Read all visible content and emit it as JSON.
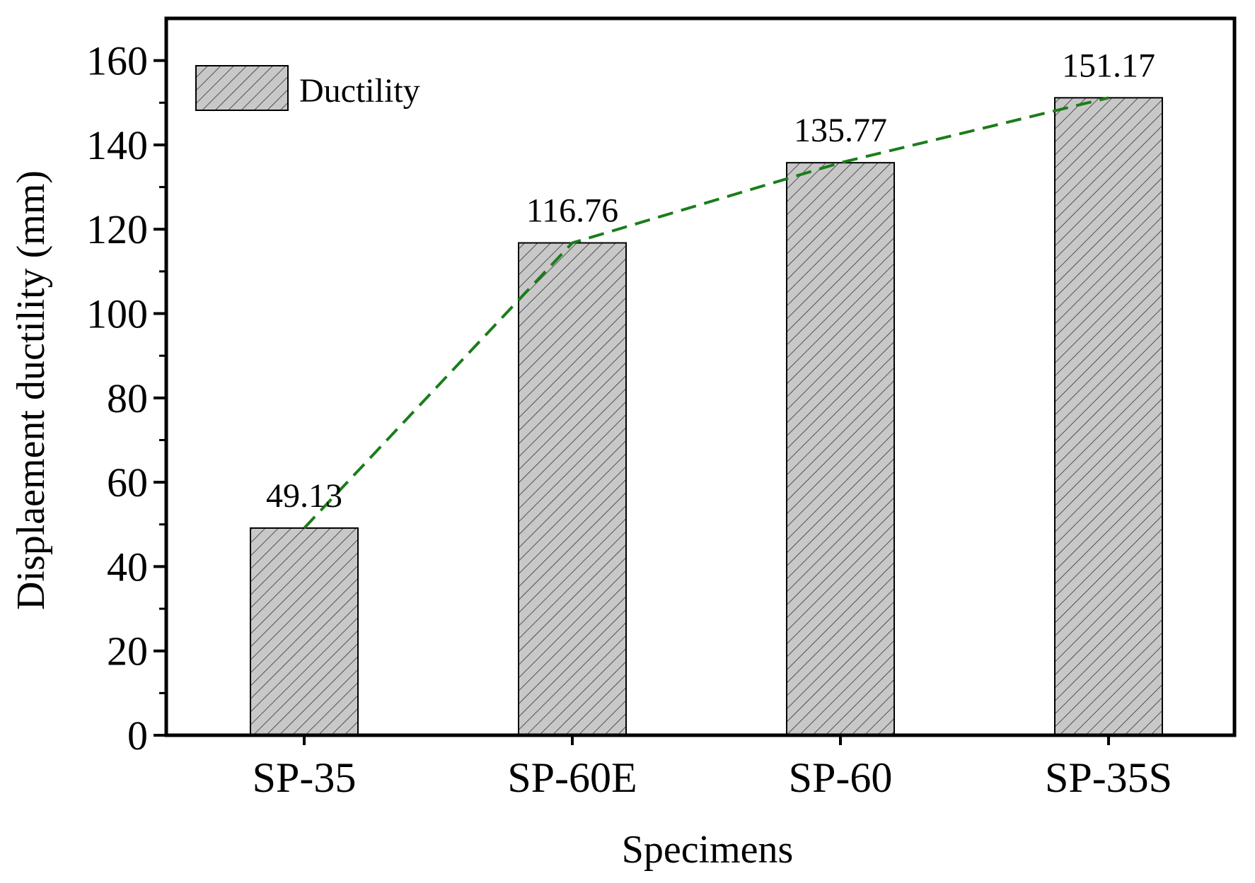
{
  "chart_data": {
    "type": "bar",
    "title": "",
    "categories": [
      "SP-35",
      "SP-60E",
      "SP-60",
      "SP-35S"
    ],
    "series": [
      {
        "name": "Ductility",
        "values": [
          49.13,
          116.76,
          135.77,
          151.17
        ]
      }
    ],
    "data_labels": [
      "49.13",
      "116.76",
      "135.77",
      "151.17"
    ],
    "xlabel": "Specimens",
    "ylabel": "Displaement ductility (mm)",
    "ylim": [
      0,
      170
    ],
    "yticks": [
      0,
      20,
      40,
      60,
      80,
      100,
      120,
      140,
      160
    ],
    "grid": false,
    "legend": {
      "position": "top-left",
      "entries": [
        "Ductility"
      ]
    },
    "trend_line": {
      "style": "dashed",
      "color": "#1a7d1a",
      "values": [
        49.13,
        116.76,
        135.77,
        151.17
      ]
    },
    "colors": {
      "bar_fill": "#c8c8c8",
      "hatch": "#333333",
      "axis": "#000000",
      "trend": "#1a7d1a"
    }
  }
}
